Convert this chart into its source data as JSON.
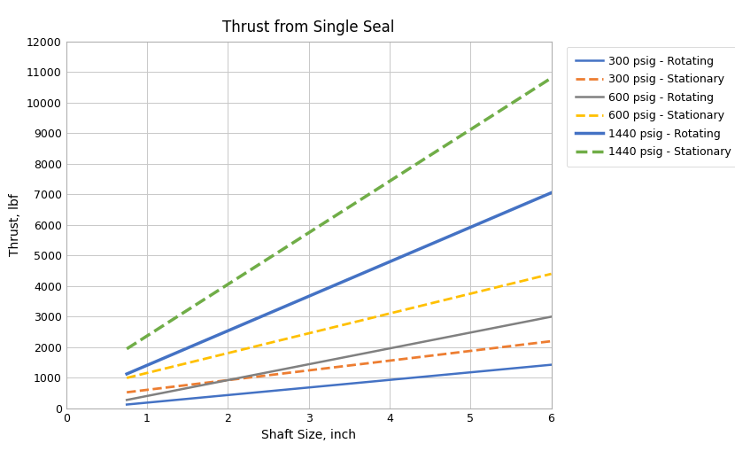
{
  "title": "Thrust from Single Seal",
  "xlabel": "Shaft Size, inch",
  "ylabel": "Thrust, lbf",
  "xlim": [
    0,
    6
  ],
  "ylim": [
    0,
    12000
  ],
  "x_start": 0.75,
  "x_end": 6.0,
  "series": [
    {
      "label": "300 psig - Rotating",
      "x0": 0.75,
      "y0": 130,
      "x1": 6.0,
      "y1": 1430,
      "color": "#4472C4",
      "ls": "-",
      "lw": 1.8
    },
    {
      "label": "300 psig - Stationary",
      "x0": 0.75,
      "y0": 530,
      "x1": 6.0,
      "y1": 2200,
      "color": "#ED7D31",
      "ls": "--",
      "lw": 2.0
    },
    {
      "label": "600 psig - Rotating",
      "x0": 0.75,
      "y0": 280,
      "x1": 6.0,
      "y1": 3000,
      "color": "#808080",
      "ls": "-",
      "lw": 1.8
    },
    {
      "label": "600 psig - Stationary",
      "x0": 0.75,
      "y0": 1000,
      "x1": 6.0,
      "y1": 4400,
      "color": "#FFC000",
      "ls": "--",
      "lw": 2.0
    },
    {
      "label": "1440 psig - Rotating",
      "x0": 0.75,
      "y0": 1130,
      "x1": 6.0,
      "y1": 7050,
      "color": "#4472C4",
      "ls": "-",
      "lw": 2.5
    },
    {
      "label": "1440 psig - Stationary",
      "x0": 0.75,
      "y0": 1950,
      "x1": 6.0,
      "y1": 10800,
      "color": "#70AD47",
      "ls": "--",
      "lw": 2.5
    }
  ],
  "yticks": [
    0,
    1000,
    2000,
    3000,
    4000,
    5000,
    6000,
    7000,
    8000,
    9000,
    10000,
    11000,
    12000
  ],
  "xticks": [
    0,
    1,
    2,
    3,
    4,
    5,
    6
  ],
  "background_color": "#FFFFFF",
  "grid_color": "#C8C8C8",
  "title_fontsize": 12,
  "axis_label_fontsize": 10,
  "tick_fontsize": 9,
  "legend_fontsize": 9
}
